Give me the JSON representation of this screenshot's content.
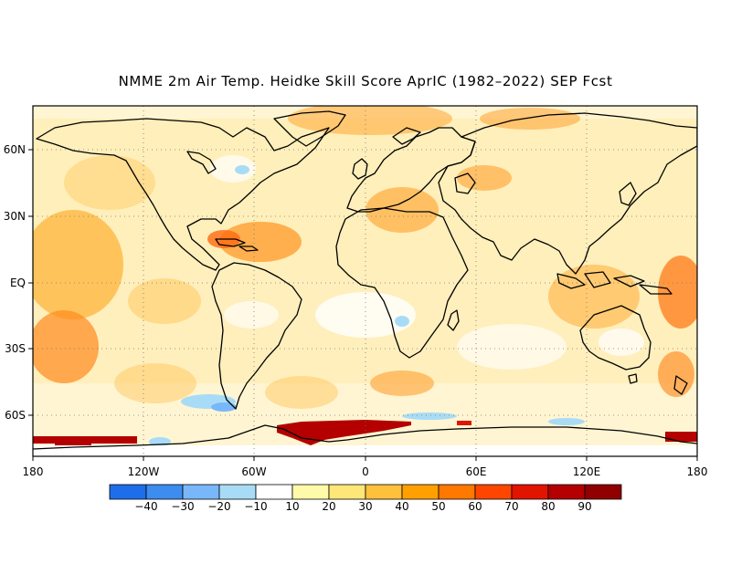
{
  "title": "NMME 2m Air Temp. Heidke Skill Score AprIC (1982–2022) SEP Fcst",
  "lat_labels": [
    "60N",
    "30N",
    "EQ",
    "30S",
    "60S"
  ],
  "lon_labels": [
    "180",
    "120W",
    "60W",
    "0",
    "60E",
    "120E",
    "180"
  ],
  "colorbar": {
    "tick_labels": [
      "−40",
      "−30",
      "−20",
      "−10",
      "10",
      "20",
      "30",
      "40",
      "50",
      "60",
      "70",
      "80",
      "90"
    ],
    "colors": [
      "#1e6eeb",
      "#3d8cf0",
      "#78b8fa",
      "#a8dcf6",
      "#ffffff",
      "#fffaaa",
      "#ffe678",
      "#ffc03c",
      "#ffa000",
      "#ff7800",
      "#ff4600",
      "#e11400",
      "#b40000",
      "#900000"
    ]
  }
}
